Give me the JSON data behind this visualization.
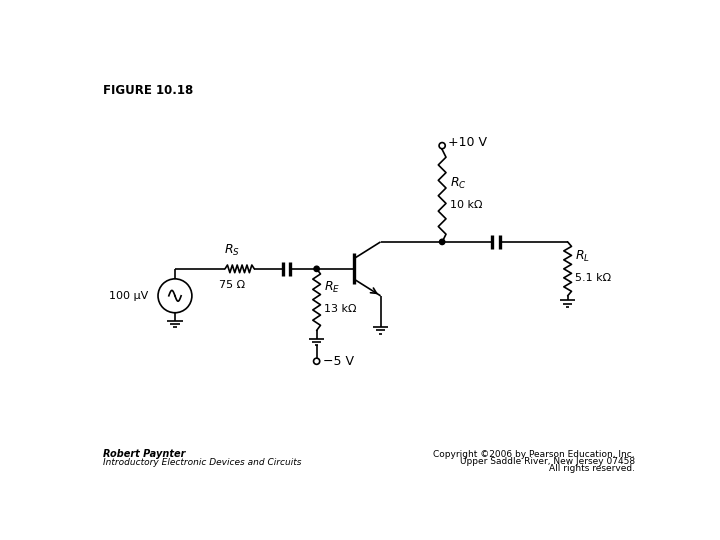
{
  "title": "FIGURE 10.18",
  "figure_size": [
    7.2,
    5.4
  ],
  "dpi": 100,
  "bg_color": "#ffffff",
  "text_color": "#000000",
  "line_color": "#000000",
  "line_width": 1.2,
  "footer_left_line1": "Robert Paynter",
  "footer_left_line2": "Introductory Electronic Devices and Circuits",
  "footer_right_line1": "Copyright ©2006 by Pearson Education, Inc.",
  "footer_right_line2": "Upper Saddle River, New Jersey 07458",
  "footer_right_line3": "All rights reserved."
}
